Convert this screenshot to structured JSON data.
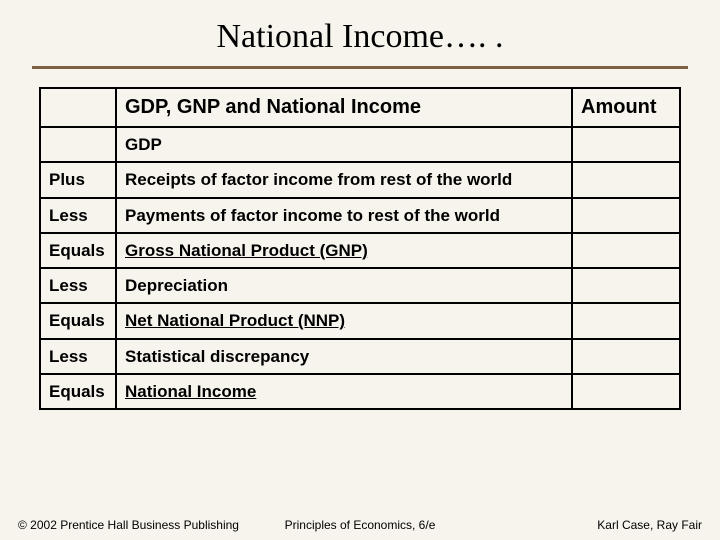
{
  "title": "National Income…. .",
  "table": {
    "header": {
      "col2": "GDP, GNP and National Income",
      "col3": "Amount"
    },
    "rows": [
      {
        "c1": "",
        "c2": "GDP",
        "c2_bold": true,
        "c2_underline": false
      },
      {
        "c1": "Plus",
        "c2": "Receipts of factor income from rest of the world",
        "c2_bold": true,
        "c2_underline": false
      },
      {
        "c1": "Less",
        "c2": "Payments of  factor income to rest of the world",
        "c2_bold": true,
        "c2_underline": false
      },
      {
        "c1": "Equals",
        "c2": "Gross National Product (GNP)",
        "c2_bold": true,
        "c2_underline": true
      },
      {
        "c1": "Less",
        "c2": "Depreciation",
        "c2_bold": true,
        "c2_underline": false
      },
      {
        "c1": "Equals",
        "c2": "Net National Product (NNP)",
        "c2_bold": true,
        "c2_underline": true
      },
      {
        "c1": "Less",
        "c2": "Statistical discrepancy",
        "c2_bold": true,
        "c2_underline": false
      },
      {
        "c1": "Equals",
        "c2": "National Income",
        "c2_bold": true,
        "c2_underline": true
      }
    ]
  },
  "footer": {
    "left": "© 2002 Prentice Hall Business Publishing",
    "center": "Principles of Economics, 6/e",
    "right": "Karl Case, Ray Fair"
  },
  "colors": {
    "background": "#f6f4ec",
    "rule": "#806040",
    "border": "#000000",
    "text": "#000000"
  }
}
